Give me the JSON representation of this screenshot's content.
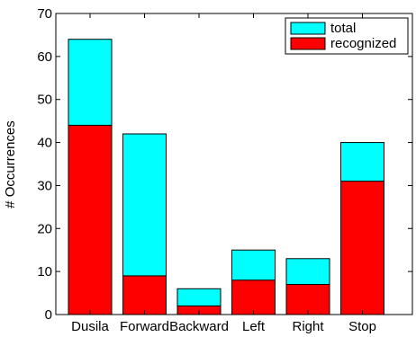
{
  "chart_data": {
    "type": "bar",
    "stacked": "overlay",
    "categories": [
      "Dusila",
      "Forward",
      "Backward",
      "Left",
      "Right",
      "Stop"
    ],
    "series": [
      {
        "name": "total",
        "values": [
          64,
          42,
          6,
          15,
          13,
          40
        ],
        "color": "#00ffff"
      },
      {
        "name": "recognized",
        "values": [
          44,
          9,
          2,
          8,
          7,
          31
        ],
        "color": "#ff0000"
      }
    ],
    "title": "",
    "xlabel": "",
    "ylabel": "# Occurrences",
    "ylim": [
      0,
      70
    ],
    "yticks": [
      0,
      10,
      20,
      30,
      40,
      50,
      60,
      70
    ],
    "grid": false,
    "legend_position": "top-right"
  }
}
